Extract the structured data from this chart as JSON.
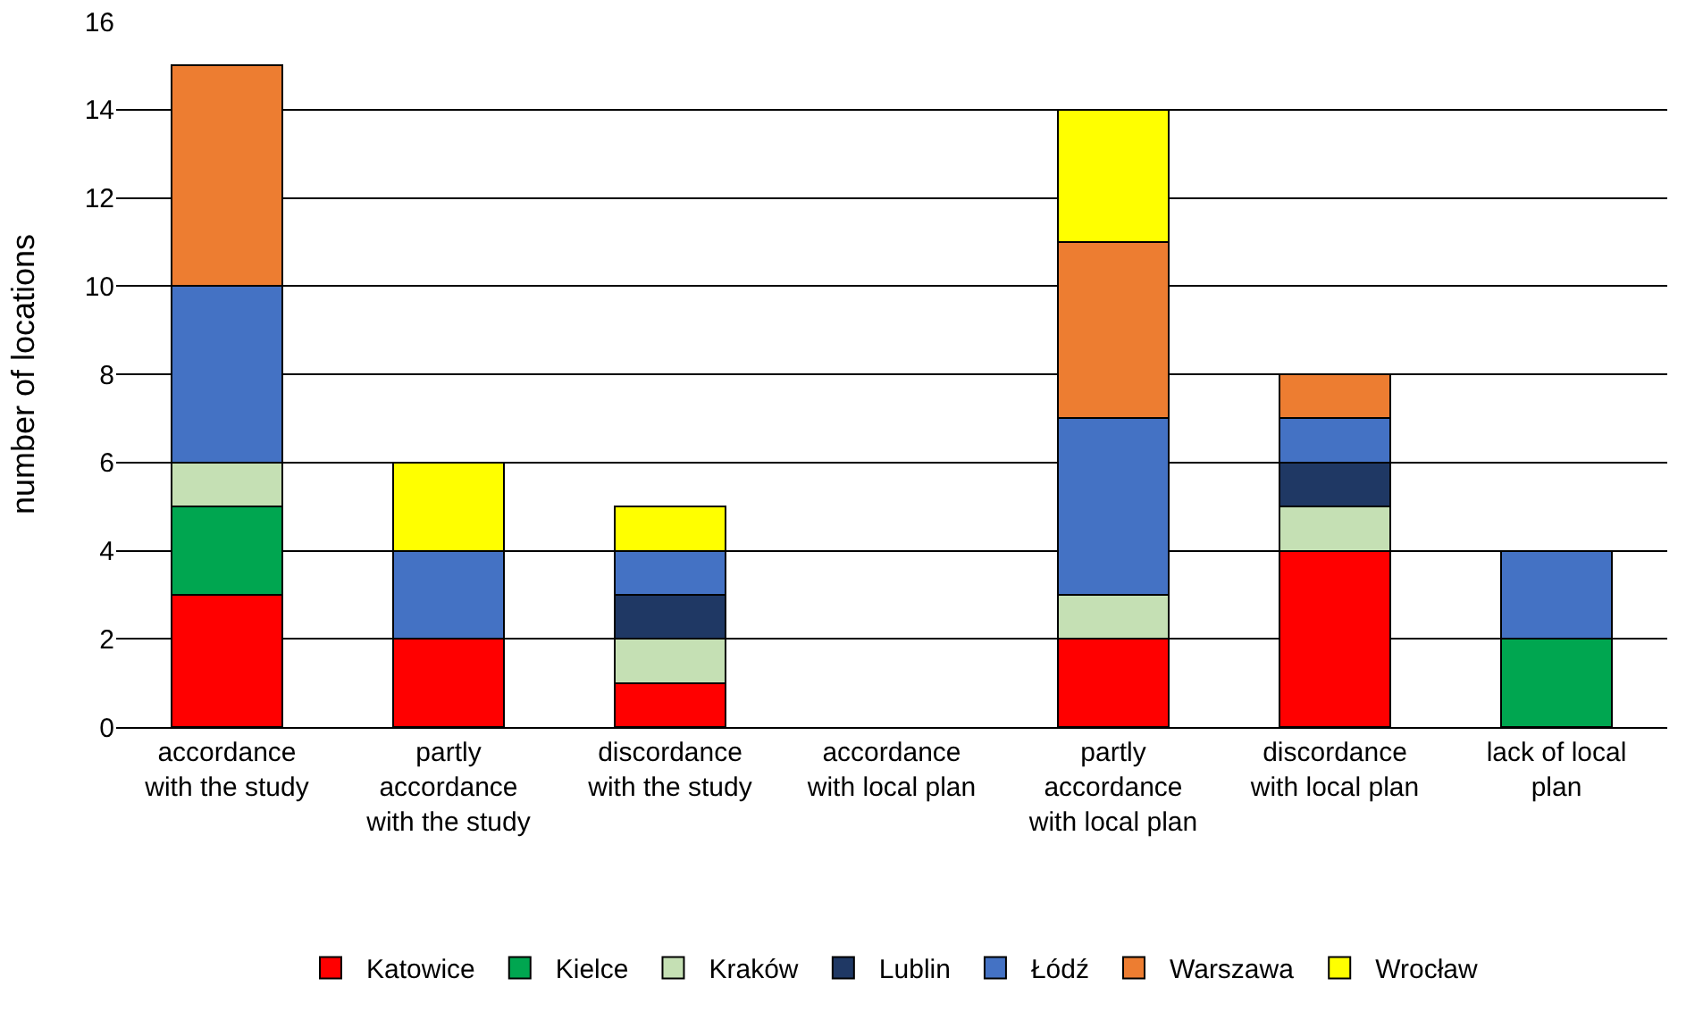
{
  "chart_data": {
    "type": "bar",
    "stacked": true,
    "ylabel": "number of locations",
    "categories": [
      "accordance\nwith the study",
      "partly\naccordance\nwith the study",
      "discordance\nwith the study",
      "accordance\nwith local plan",
      "partly\naccordance\nwith local plan",
      "discordance\nwith local plan",
      "lack of local\nplan"
    ],
    "series": [
      {
        "name": "Katowice",
        "color": "#ff0000",
        "values": [
          3,
          2,
          1,
          null,
          2,
          4,
          null
        ]
      },
      {
        "name": "Kielce",
        "color": "#00a650",
        "values": [
          2,
          null,
          null,
          null,
          null,
          null,
          2
        ]
      },
      {
        "name": "Kraków",
        "color": "#c5e0b4",
        "values": [
          1,
          null,
          1,
          null,
          1,
          1,
          null
        ]
      },
      {
        "name": "Lublin",
        "color": "#1f3864",
        "values": [
          null,
          null,
          1,
          null,
          null,
          1,
          null
        ]
      },
      {
        "name": "Łódź",
        "color": "#4472c4",
        "values": [
          4,
          2,
          1,
          null,
          4,
          1,
          2
        ]
      },
      {
        "name": "Warszawa",
        "color": "#ed7d31",
        "values": [
          5,
          null,
          null,
          null,
          4,
          1,
          null
        ]
      },
      {
        "name": "Wrocław",
        "color": "#ffff00",
        "values": [
          null,
          2,
          1,
          null,
          3,
          null,
          null
        ]
      }
    ],
    "ylim": [
      0,
      16
    ],
    "yticks": [
      0,
      2,
      4,
      6,
      8,
      10,
      12,
      14,
      16
    ],
    "grid": "y",
    "legend": "bottom"
  }
}
